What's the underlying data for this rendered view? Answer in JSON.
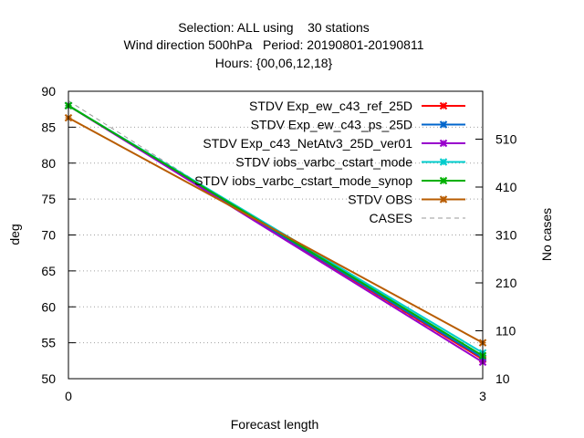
{
  "chart_data": {
    "type": "line",
    "title_lines": [
      "Selection: ALL using    30 stations",
      "Wind direction 500hPa   Period: 20190801-20190811",
      "Hours: {00,06,12,18}"
    ],
    "xlabel": "Forecast length",
    "ylabel": "deg",
    "y2label": "No cases",
    "x": [
      0,
      3
    ],
    "xticks": [
      "0",
      "3"
    ],
    "xlim": [
      0,
      3
    ],
    "ylim": [
      50,
      90
    ],
    "yticks": [
      50,
      55,
      60,
      65,
      70,
      75,
      80,
      85,
      90
    ],
    "y2lim": [
      10,
      610
    ],
    "y2ticks": [
      10,
      110,
      210,
      310,
      410,
      510
    ],
    "legend_position": "top-right",
    "series": [
      {
        "name": "STDV Exp_ew_c43_ref_25D",
        "color": "#ff0000",
        "values": [
          88.0,
          52.7
        ]
      },
      {
        "name": "STDV Exp_ew_c43_ps_25D",
        "color": "#0066cc",
        "values": [
          88.0,
          52.9
        ]
      },
      {
        "name": "STDV Exp_c43_NetAtv3_25D_ver01",
        "color": "#9900cc",
        "values": [
          88.0,
          52.3
        ]
      },
      {
        "name": "STDV iobs_varbc_cstart_mode",
        "color": "#00cccc",
        "values": [
          88.0,
          53.6
        ]
      },
      {
        "name": "STDV iobs_varbc_cstart_mode_synop",
        "color": "#00b000",
        "values": [
          88.0,
          53.2
        ]
      },
      {
        "name": "STDV OBS",
        "color": "#b85c00",
        "values": [
          86.3,
          55.0
        ]
      }
    ],
    "cases": {
      "name": "CASES",
      "color": "#999999",
      "values": [
        590,
        45
      ]
    }
  }
}
